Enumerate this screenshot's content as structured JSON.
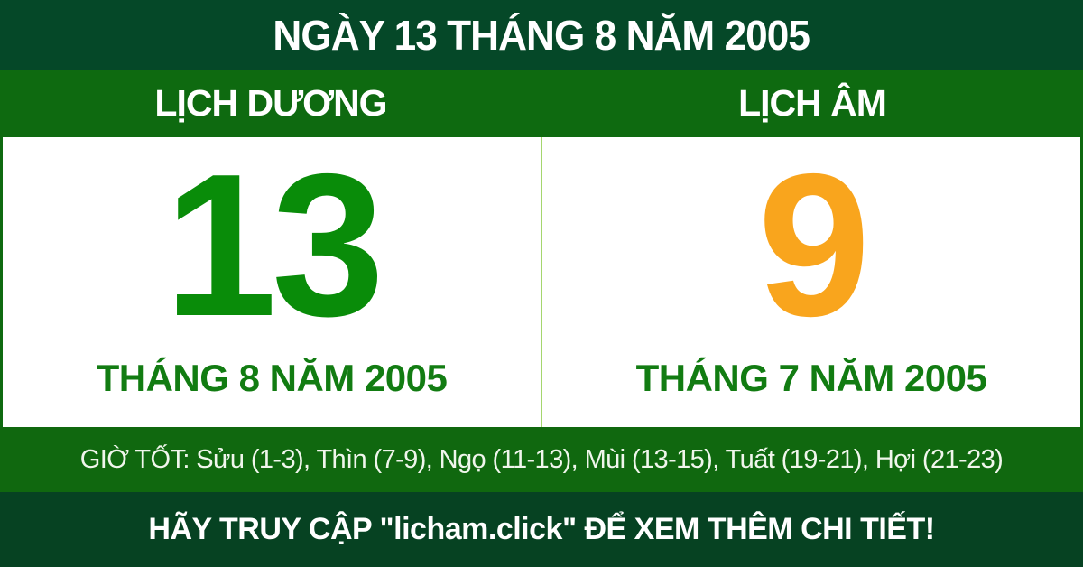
{
  "header": {
    "title": "NGÀY 13 THÁNG 8 NĂM 2005"
  },
  "columns": {
    "solar": {
      "label": "LỊCH DƯƠNG",
      "day": "13",
      "month_year": "THÁNG 8 NĂM 2005"
    },
    "lunar": {
      "label": "LỊCH ÂM",
      "day": "9",
      "month_year": "THÁNG 7 NĂM 2005"
    }
  },
  "good_hours": {
    "text": "GIỜ TỐT: Sửu (1-3), Thìn (7-9), Ngọ (11-13), Mùi (13-15), Tuất (19-21), Hợi (21-23)"
  },
  "footer": {
    "cta": "HÃY TRUY CẬP \"licham.click\" ĐỂ XEM THÊM CHI TIẾT!"
  },
  "colors": {
    "header_bg": "#054828",
    "bar_green": "#0e6a10",
    "day_solar": "#098c09",
    "day_lunar": "#f9a51d",
    "month_green": "#127c12",
    "divider": "#a5d66e",
    "good_bg": "#10680f",
    "good_text": "#f0f6ec",
    "footer_bg": "#064222",
    "white": "#ffffff"
  }
}
